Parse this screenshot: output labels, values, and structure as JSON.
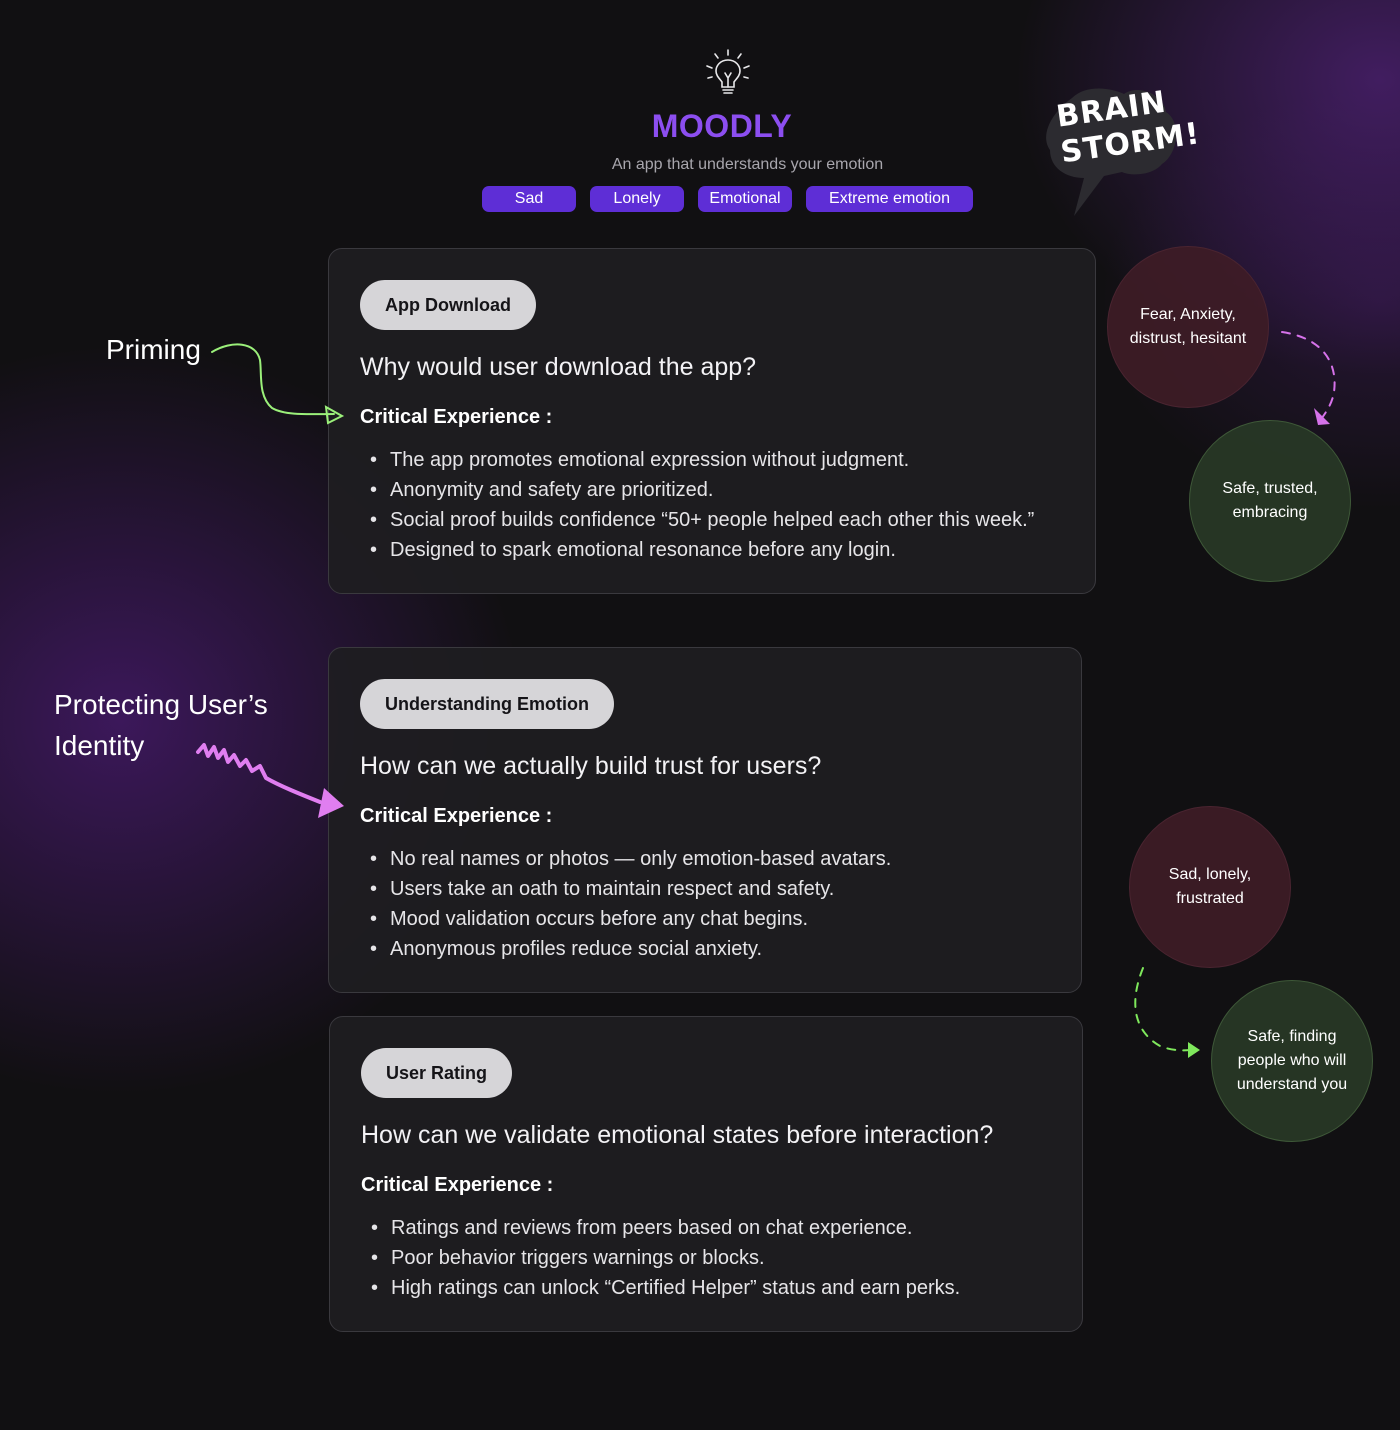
{
  "header": {
    "icon": "lightbulb-icon",
    "app_name": "MOODLY",
    "subtitle": "An app that understands your emotion",
    "tags": [
      "Sad",
      "Lonely",
      "Emotional",
      "Extreme emotion"
    ],
    "accent": "#8c4ef0",
    "tag_color": "#5e2ed6"
  },
  "badge": {
    "line1": "BRAIN",
    "line2": "STORM!"
  },
  "side_labels": {
    "priming": "Priming",
    "protecting": "Protecting User’s Identity"
  },
  "cards": [
    {
      "pill": "App Download",
      "question": "Why would user download the app?",
      "critical": "Critical Experience :",
      "bullets": [
        "The app promotes emotional expression without judgment.",
        "Anonymity and safety are prioritized.",
        "Social proof builds confidence  “50+ people helped each other this week.”",
        "Designed to spark emotional resonance before any login."
      ]
    },
    {
      "pill": "Understanding Emotion",
      "question": "How can we actually build trust for users?",
      "critical": "Critical Experience :",
      "bullets": [
        "No real names or photos — only emotion-based avatars.",
        "Users take an oath to maintain respect and safety.",
        "Mood validation occurs before any chat begins.",
        "Anonymous profiles reduce social anxiety."
      ]
    },
    {
      "pill": "User Rating",
      "question": "How can we validate emotional states before interaction?",
      "critical": "Critical Experience :",
      "bullets": [
        "Ratings and reviews from peers based on chat experience.",
        "Poor behavior triggers warnings or blocks.",
        "High ratings can unlock “Certified Helper” status and earn perks."
      ]
    }
  ],
  "bubbles": [
    {
      "text": "Fear, Anxiety, distrust, hesitant",
      "tone": "negative"
    },
    {
      "text": "Safe, trusted, embracing",
      "tone": "positive"
    },
    {
      "text": "Sad, lonely, frustrated",
      "tone": "negative"
    },
    {
      "text": "Safe, finding people who will understand you",
      "tone": "positive"
    }
  ]
}
